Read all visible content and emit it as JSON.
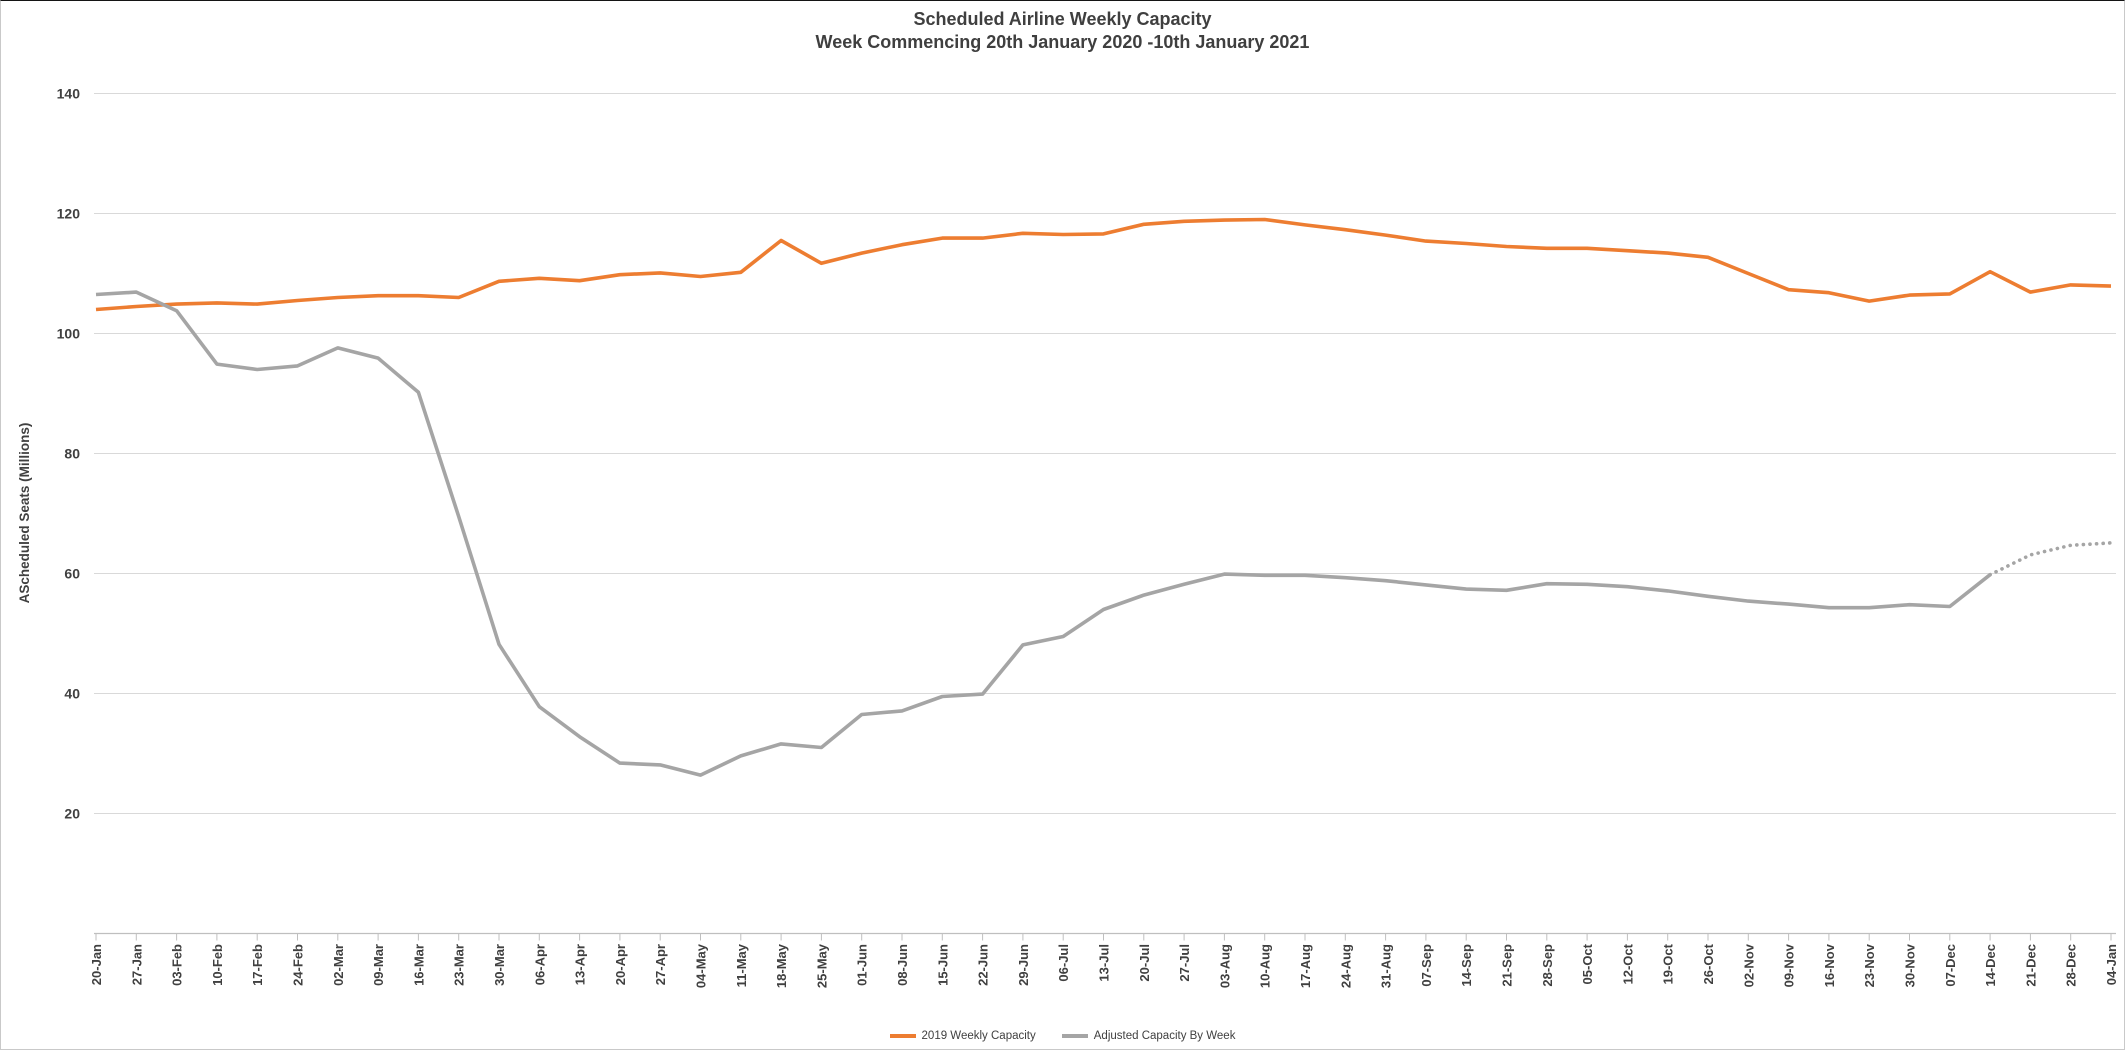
{
  "chart": {
    "title_line1": "Scheduled Airline Weekly Capacity",
    "title_line2": "Week Commencing 20th January 2020 -10th January 2021"
  },
  "style": {
    "orange": "#ED7D31",
    "gray": "#A5A5A5",
    "gridline": "#D9D9D9",
    "axis": "#BFBFBF",
    "text": "#404040"
  },
  "chart_data": {
    "type": "line",
    "title": "Scheduled Airline Weekly Capacity",
    "subtitle": "Week Commencing 20th January 2020 -10th January 2021",
    "xlabel": "",
    "ylabel": "AScheduled Seats (Millions)",
    "ylim": [
      0,
      145
    ],
    "yticks": [
      20,
      40,
      60,
      80,
      100,
      120,
      140
    ],
    "grid": "horizontal",
    "legend_position": "bottom-center",
    "categories": [
      "20-Jan",
      "27-Jan",
      "03-Feb",
      "10-Feb",
      "17-Feb",
      "24-Feb",
      "02-Mar",
      "09-Mar",
      "16-Mar",
      "23-Mar",
      "30-Mar",
      "06-Apr",
      "13-Apr",
      "20-Apr",
      "27-Apr",
      "04-May",
      "11-May",
      "18-May",
      "25-May",
      "01-Jun",
      "08-Jun",
      "15-Jun",
      "22-Jun",
      "29-Jun",
      "06-Jul",
      "13-Jul",
      "20-Jul",
      "27-Jul",
      "03-Aug",
      "10-Aug",
      "17-Aug",
      "24-Aug",
      "31-Aug",
      "07-Sep",
      "14-Sep",
      "21-Sep",
      "28-Sep",
      "05-Oct",
      "12-Oct",
      "19-Oct",
      "26-Oct",
      "02-Nov",
      "09-Nov",
      "16-Nov",
      "23-Nov",
      "30-Nov",
      "07-Dec",
      "14-Dec",
      "21-Dec",
      "28-Dec",
      "04-Jan"
    ],
    "series": [
      {
        "name": "2019 Weekly Capacity",
        "color": "#ED7D31",
        "line_style": "solid",
        "values": [
          104,
          104.5,
          104.9,
          105.1,
          104.9,
          105.5,
          106,
          106.3,
          106.3,
          106,
          108.7,
          109.2,
          108.8,
          109.8,
          110.1,
          109.5,
          110.2,
          115.5,
          111.7,
          113.4,
          114.8,
          115.9,
          115.9,
          116.7,
          116.5,
          116.6,
          118.2,
          118.7,
          118.9,
          119,
          118.1,
          117.3,
          116.4,
          115.4,
          115,
          114.5,
          114.2,
          114.2,
          113.8,
          113.4,
          112.7,
          110,
          107.3,
          106.8,
          105.4,
          106.4,
          106.6,
          110.3,
          106.9,
          108.1,
          107.9
        ]
      },
      {
        "name": "Adjusted Capacity By Week",
        "color": "#A5A5A5",
        "line_style": "solid until 14-Dec, dotted projection afterwards",
        "dotted_from_index": 47,
        "values": [
          106.5,
          106.9,
          103.8,
          94.9,
          94,
          94.6,
          97.6,
          95.9,
          90.2,
          69.5,
          48.2,
          37.8,
          32.8,
          28.4,
          28.1,
          26.4,
          29.6,
          31.6,
          31,
          36.5,
          37.1,
          39.5,
          39.9,
          48.1,
          49.5,
          54,
          56.4,
          58.2,
          59.9,
          59.7,
          59.7,
          59.3,
          58.8,
          58.1,
          57.4,
          57.2,
          58.3,
          58.2,
          57.8,
          57.1,
          56.2,
          55.4,
          54.9,
          54.3,
          54.3,
          54.8,
          54.5,
          59.8,
          63.1,
          64.7,
          65.1
        ]
      }
    ]
  }
}
